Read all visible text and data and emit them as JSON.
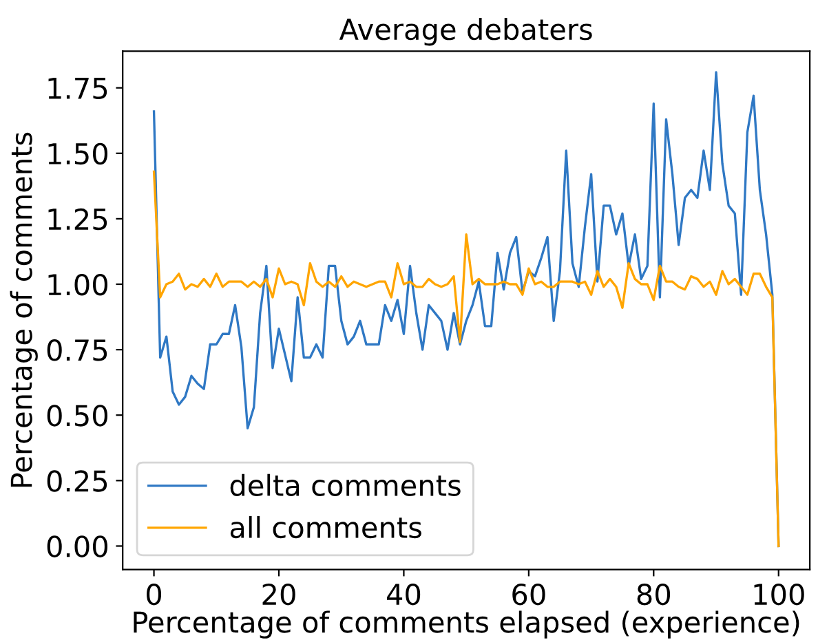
{
  "chart_data": {
    "type": "line",
    "title": "Average debaters",
    "xlabel": "Percentage of comments elapsed (experience)",
    "ylabel": "Percentage of comments",
    "x": [
      0,
      1,
      2,
      3,
      4,
      5,
      6,
      7,
      8,
      9,
      10,
      11,
      12,
      13,
      14,
      15,
      16,
      17,
      18,
      19,
      20,
      21,
      22,
      23,
      24,
      25,
      26,
      27,
      28,
      29,
      30,
      31,
      32,
      33,
      34,
      35,
      36,
      37,
      38,
      39,
      40,
      41,
      42,
      43,
      44,
      45,
      46,
      47,
      48,
      49,
      50,
      51,
      52,
      53,
      54,
      55,
      56,
      57,
      58,
      59,
      60,
      61,
      62,
      63,
      64,
      65,
      66,
      67,
      68,
      69,
      70,
      71,
      72,
      73,
      74,
      75,
      76,
      77,
      78,
      79,
      80,
      81,
      82,
      83,
      84,
      85,
      86,
      87,
      88,
      89,
      90,
      91,
      92,
      93,
      94,
      95,
      96,
      97,
      98,
      99,
      100
    ],
    "series": [
      {
        "name": "delta comments",
        "color": "#2f78c4",
        "values": [
          1.66,
          0.72,
          0.8,
          0.59,
          0.54,
          0.57,
          0.65,
          0.62,
          0.6,
          0.77,
          0.77,
          0.81,
          0.81,
          0.92,
          0.76,
          0.45,
          0.53,
          0.89,
          1.07,
          0.68,
          0.83,
          0.73,
          0.63,
          0.95,
          0.72,
          0.72,
          0.77,
          0.72,
          1.07,
          1.07,
          0.86,
          0.77,
          0.8,
          0.86,
          0.77,
          0.77,
          0.77,
          0.92,
          0.86,
          0.94,
          0.81,
          1.07,
          0.89,
          0.75,
          0.92,
          0.89,
          0.86,
          0.75,
          0.89,
          0.77,
          0.86,
          0.92,
          1.01,
          0.84,
          0.84,
          1.12,
          0.98,
          1.12,
          1.18,
          0.97,
          1.05,
          1.03,
          1.1,
          1.18,
          0.86,
          1.05,
          1.51,
          1.08,
          0.99,
          1.22,
          1.42,
          1.01,
          1.3,
          1.3,
          1.19,
          1.27,
          1.07,
          1.19,
          1.02,
          1.07,
          1.69,
          0.95,
          1.63,
          1.42,
          1.15,
          1.33,
          1.36,
          1.33,
          1.51,
          1.36,
          1.81,
          1.46,
          1.3,
          1.27,
          0.96,
          1.58,
          1.72,
          1.36,
          1.19,
          0.96,
          0.0
        ]
      },
      {
        "name": "all comments",
        "color": "#ffa500",
        "values": [
          1.43,
          0.95,
          1.0,
          1.01,
          1.04,
          0.98,
          1.0,
          0.99,
          1.02,
          0.99,
          1.04,
          0.99,
          1.01,
          1.01,
          1.01,
          0.99,
          1.01,
          0.99,
          1.02,
          0.95,
          1.06,
          1.0,
          1.01,
          1.0,
          0.92,
          1.08,
          1.01,
          0.99,
          1.01,
          0.99,
          1.03,
          0.99,
          1.01,
          1.0,
          0.99,
          1.0,
          1.01,
          1.01,
          0.95,
          1.08,
          1.0,
          1.01,
          0.99,
          0.99,
          1.02,
          1.0,
          0.99,
          1.0,
          1.03,
          0.78,
          1.19,
          1.0,
          1.02,
          1.0,
          1.0,
          1.0,
          1.01,
          1.0,
          1.0,
          0.96,
          1.06,
          1.0,
          1.01,
          0.99,
          0.99,
          1.01,
          1.01,
          1.01,
          1.0,
          1.01,
          0.96,
          1.05,
          0.99,
          1.02,
          0.99,
          0.91,
          1.08,
          1.02,
          1.0,
          1.0,
          0.94,
          1.07,
          1.01,
          1.01,
          0.99,
          0.98,
          1.03,
          1.02,
          0.99,
          1.01,
          0.96,
          1.05,
          1.0,
          1.02,
          0.99,
          0.96,
          1.04,
          1.04,
          0.99,
          0.95,
          0.0
        ]
      }
    ],
    "xlim": [
      -5,
      105
    ],
    "xticks": [
      0,
      20,
      40,
      60,
      80,
      100
    ],
    "ylim": [
      -0.09,
      1.89
    ],
    "yticks": [
      {
        "value": 0,
        "label": "0.00"
      },
      {
        "value": 0.25,
        "label": "0.25"
      },
      {
        "value": 0.5,
        "label": "0.50"
      },
      {
        "value": 0.75,
        "label": "0.75"
      },
      {
        "value": 1,
        "label": "1.00"
      },
      {
        "value": 1.25,
        "label": "1.25"
      },
      {
        "value": 1.5,
        "label": "1.50"
      },
      {
        "value": 1.75,
        "label": "1.75"
      }
    ],
    "grid": false,
    "legend": "bottom left",
    "marker": "none",
    "line_style": "solid"
  }
}
